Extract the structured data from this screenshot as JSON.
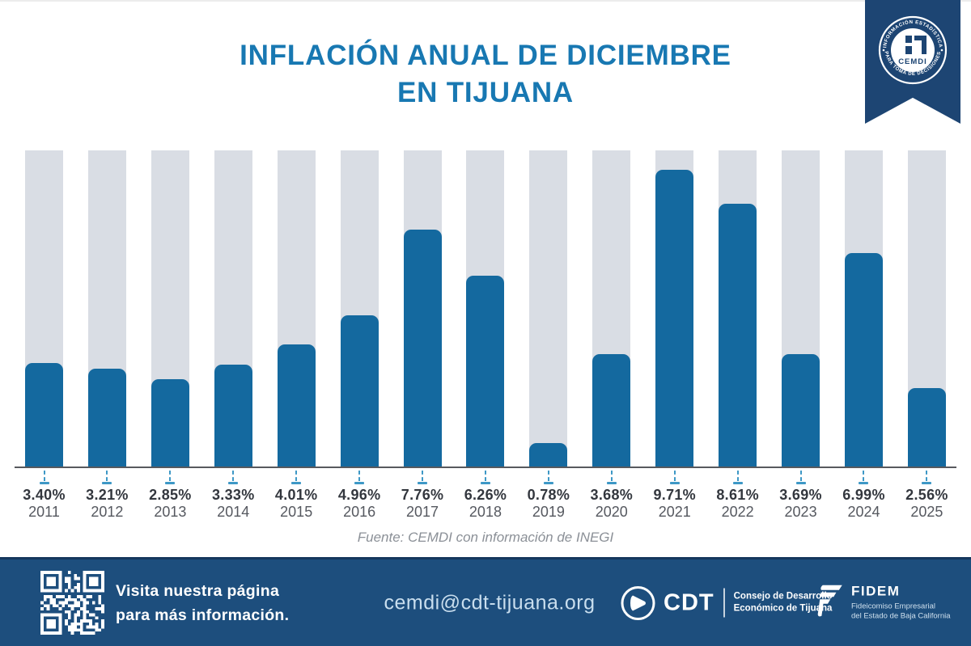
{
  "title": {
    "line1": "INFLACIÓN ANUAL DE DICIEMBRE",
    "line2": "EN TIJUANA"
  },
  "badge": {
    "arc_top": "INFORMACIÓN ESTADÍSTICA",
    "arc_bottom": "PARA TOMA DE DECISIONES",
    "label": "CEMDI"
  },
  "chart_data": {
    "type": "bar",
    "title": "INFLACIÓN ANUAL DE DICIEMBRE EN TIJUANA",
    "categories": [
      "2011",
      "2012",
      "2013",
      "2014",
      "2015",
      "2016",
      "2017",
      "2018",
      "2019",
      "2020",
      "2021",
      "2022",
      "2023",
      "2024",
      "2025"
    ],
    "values": [
      3.4,
      3.21,
      2.85,
      3.33,
      4.01,
      4.96,
      7.76,
      6.26,
      0.78,
      3.68,
      9.71,
      8.61,
      3.69,
      6.99,
      2.56
    ],
    "value_labels": [
      "3.40%",
      "3.21%",
      "2.85%",
      "3.33%",
      "4.01%",
      "4.96%",
      "7.76%",
      "6.26%",
      "0.78%",
      "3.68%",
      "9.71%",
      "8.61%",
      "3.69%",
      "6.99%",
      "2.56%"
    ],
    "value_suffix": "%",
    "xlabel": "",
    "ylabel": "",
    "ylim": [
      0,
      10.35
    ],
    "grid": false,
    "legend": null,
    "bar_color": "#14699f",
    "track_color": "#d9dde4"
  },
  "source_note": "Fuente: CEMDI con información de INEGI",
  "footer": {
    "cta_line1": "Visita nuestra página",
    "cta_line2": "para más información.",
    "email": "cemdi@cdt-tijuana.org",
    "cdt_abbr": "CDT",
    "cdt_line1": "Consejo de Desarrollo",
    "cdt_line2": "Económico de Tijuana",
    "fidem_abbr": "FIDEM",
    "fidem_line1": "Fideicomiso Empresarial",
    "fidem_line2": "del Estado de Baja California"
  },
  "colors": {
    "title_blue": "#1878b2",
    "bar_blue": "#14699f",
    "track_gray": "#d9dde4",
    "leader_blue": "#3e98c6",
    "footer_navy": "#1d4e7d",
    "badge_navy": "#1d4573",
    "value_label": "#33373e",
    "year_label": "#55585f",
    "source_gray": "#8b9097"
  }
}
